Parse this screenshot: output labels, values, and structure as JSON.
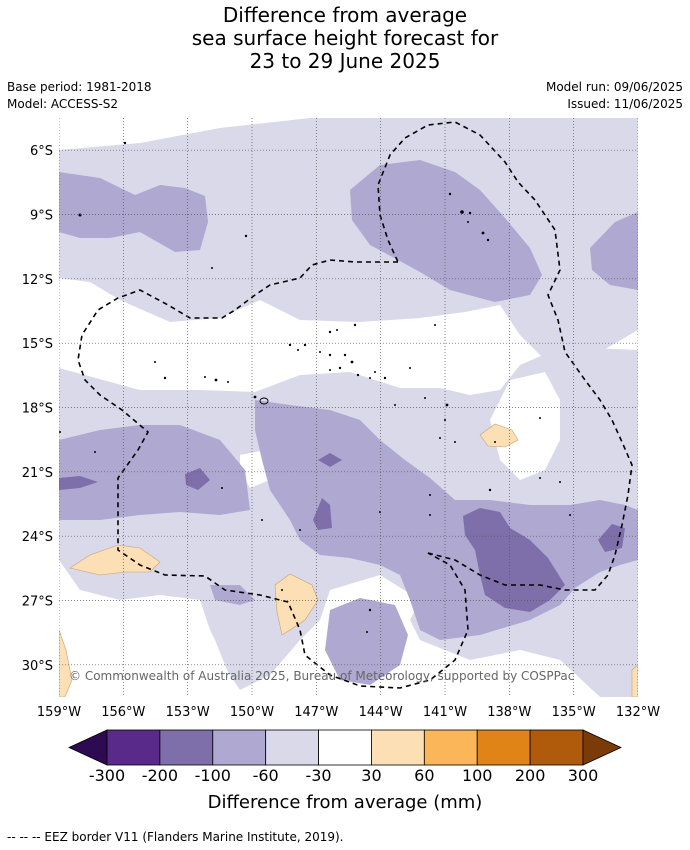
{
  "title": {
    "line1": "Difference from average",
    "line2": "sea surface height forecast for",
    "line3": "23 to 29 June 2025"
  },
  "meta": {
    "base_period": "Base period: 1981-2018",
    "model": "Model: ACCESS-S2",
    "model_run": "Model run: 09/06/2025",
    "issued": "Issued: 11/06/2025"
  },
  "map": {
    "lon_range": [
      -159,
      -132
    ],
    "lat_range": [
      -31.5,
      -4.5
    ],
    "lon_ticks": [
      {
        "value": -159,
        "label": "159°W"
      },
      {
        "value": -156,
        "label": "156°W"
      },
      {
        "value": -153,
        "label": "153°W"
      },
      {
        "value": -150,
        "label": "150°W"
      },
      {
        "value": -147,
        "label": "147°W"
      },
      {
        "value": -144,
        "label": "144°W"
      },
      {
        "value": -141,
        "label": "141°W"
      },
      {
        "value": -138,
        "label": "138°W"
      },
      {
        "value": -135,
        "label": "135°W"
      },
      {
        "value": -132,
        "label": "132°W"
      }
    ],
    "lat_ticks": [
      {
        "value": -6,
        "label": "6°S"
      },
      {
        "value": -9,
        "label": "9°S"
      },
      {
        "value": -12,
        "label": "12°S"
      },
      {
        "value": -15,
        "label": "15°S"
      },
      {
        "value": -18,
        "label": "18°S"
      },
      {
        "value": -21,
        "label": "21°S"
      },
      {
        "value": -24,
        "label": "24°S"
      },
      {
        "value": -27,
        "label": "27°S"
      },
      {
        "value": -30,
        "label": "30°S"
      }
    ],
    "copyright": "© Commonwealth of Australia 2025, Bureau of Meteorology, supported by COSPPac"
  },
  "colorbar": {
    "title": "Difference from average (mm)",
    "ticks": [
      "-300",
      "-200",
      "-100",
      "-60",
      "-30",
      "30",
      "60",
      "100",
      "200",
      "300"
    ],
    "colors": {
      "lt_minus_300": "#2d0a52",
      "minus_300_200": "#5a2a8a",
      "minus_200_100": "#7e6eaa",
      "minus_100_60": "#afa8d1",
      "minus_60_30": "#d9d9ea",
      "minus_30_30": "#ffffff",
      "p30_60": "#fddfb5",
      "p60_100": "#fab659",
      "p100_200": "#e08418",
      "p200_300": "#b05a0b",
      "gt_300": "#7a3b08"
    }
  },
  "legend_note": "--  --  -- EEZ border V11 (Flanders Marine Institute, 2019)."
}
